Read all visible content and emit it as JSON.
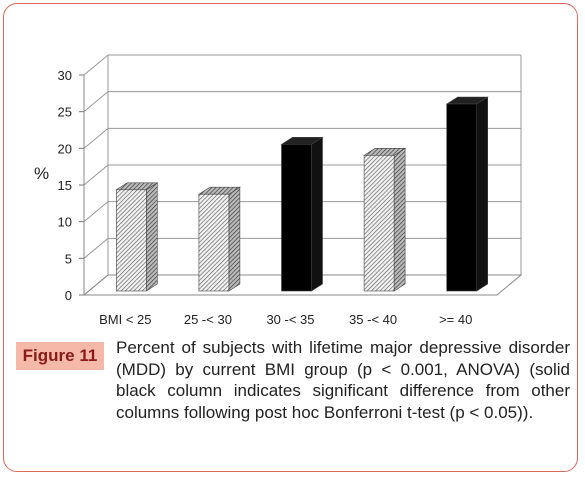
{
  "figure": {
    "label": "Figure 11",
    "caption": "Percent of subjects with lifetime major depressive disorder (MDD) by current BMI group (p < 0.001, ANOVA) (solid black column indicates significant difference from other columns following post hoc Bonferroni t-test (p < 0.05))."
  },
  "chart_data": {
    "type": "bar",
    "categories": [
      "BMI < 25",
      "25 -< 30",
      "30 -< 35",
      "35 -< 40",
      ">= 40"
    ],
    "values": [
      13.8,
      13.2,
      20.0,
      18.5,
      25.5
    ],
    "significant": [
      false,
      false,
      true,
      false,
      true
    ],
    "title": "",
    "xlabel": "",
    "ylabel": "%",
    "ylim": [
      0,
      30
    ],
    "yticks": [
      0,
      5,
      10,
      15,
      20,
      25,
      30
    ],
    "grid": true,
    "style": "3d",
    "colors": {
      "significant": "#000000",
      "other": "hatched gray",
      "grid": "#999999"
    }
  }
}
